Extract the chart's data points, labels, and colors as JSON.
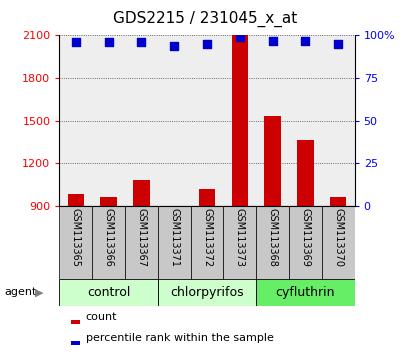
{
  "title": "GDS2215 / 231045_x_at",
  "samples": [
    "GSM113365",
    "GSM113366",
    "GSM113367",
    "GSM113371",
    "GSM113372",
    "GSM113373",
    "GSM113368",
    "GSM113369",
    "GSM113370"
  ],
  "counts": [
    980,
    960,
    1080,
    870,
    1020,
    2100,
    1530,
    1360,
    960
  ],
  "percentiles": [
    96,
    96,
    96,
    94,
    95,
    99,
    97,
    97,
    95
  ],
  "ylim_left": [
    900,
    2100
  ],
  "ylim_right": [
    0,
    100
  ],
  "yticks_left": [
    900,
    1200,
    1500,
    1800,
    2100
  ],
  "yticks_right": [
    0,
    25,
    50,
    75,
    100
  ],
  "groups": [
    {
      "label": "control",
      "start": 0,
      "end": 3,
      "color": "#ccffcc"
    },
    {
      "label": "chlorpyrifos",
      "start": 3,
      "end": 6,
      "color": "#ccffcc"
    },
    {
      "label": "cyfluthrin",
      "start": 6,
      "end": 9,
      "color": "#66ee66"
    }
  ],
  "bar_color": "#cc0000",
  "dot_color": "#0000cc",
  "bar_bottom": 900,
  "bar_width": 0.5,
  "dot_size": 40,
  "sample_box_color": "#c8c8c8",
  "agent_label": "agent",
  "legend_count_label": "count",
  "legend_percentile_label": "percentile rank within the sample",
  "title_fontsize": 11,
  "tick_fontsize": 8,
  "label_fontsize": 8,
  "group_fontsize": 9,
  "sample_fontsize": 7
}
